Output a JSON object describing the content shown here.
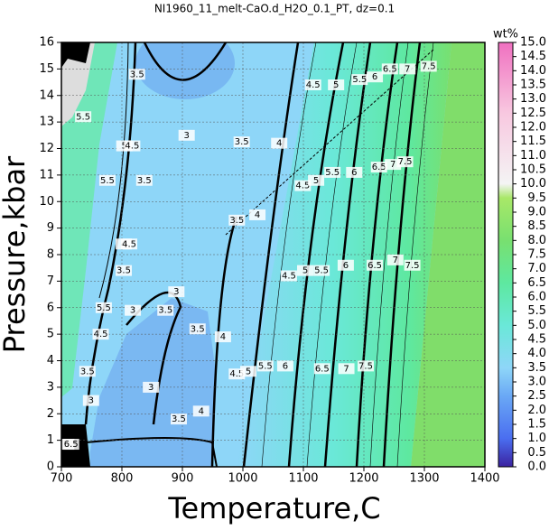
{
  "chart_data": {
    "type": "contour",
    "title": "NI1960_11_melt-CaO.d_H2O_0.1_PT, dz=0.1",
    "x_label": "Temperature,C",
    "y_label": "Pressure,kbar",
    "xlim": [
      700,
      1400
    ],
    "xticks": [
      700,
      800,
      900,
      1000,
      1100,
      1200,
      1300,
      1400
    ],
    "ylim": [
      0,
      16
    ],
    "yticks": [
      0,
      1,
      2,
      3,
      4,
      5,
      6,
      7,
      8,
      9,
      10,
      11,
      12,
      13,
      14,
      15,
      16
    ],
    "grid": true,
    "colorbar": {
      "label": "wt%",
      "lim": [
        0,
        15
      ],
      "ticks": [
        {
          "value": 0,
          "label": "0.0"
        },
        {
          "value": 0.5,
          "label": "0.5"
        },
        {
          "value": 1,
          "label": "1.0"
        },
        {
          "value": 1.5,
          "label": "1.5"
        },
        {
          "value": 2,
          "label": "2.0"
        },
        {
          "value": 2.5,
          "label": "2.5"
        },
        {
          "value": 3,
          "label": "3.0"
        },
        {
          "value": 3.5,
          "label": "3.5"
        },
        {
          "value": 4,
          "label": "4.0"
        },
        {
          "value": 4.5,
          "label": "4.5"
        },
        {
          "value": 5,
          "label": "5.0"
        },
        {
          "value": 5.5,
          "label": "5.5"
        },
        {
          "value": 6,
          "label": "6.0"
        },
        {
          "value": 6.5,
          "label": "6.5"
        },
        {
          "value": 7,
          "label": "7.0"
        },
        {
          "value": 7.5,
          "label": "7.5"
        },
        {
          "value": 8,
          "label": "8.0"
        },
        {
          "value": 8.5,
          "label": "8.5"
        },
        {
          "value": 9,
          "label": "9.0"
        },
        {
          "value": 9.5,
          "label": "9.5"
        },
        {
          "value": 10,
          "label": "10.0"
        },
        {
          "value": 10.5,
          "label": "10.5"
        },
        {
          "value": 11,
          "label": "11.0"
        },
        {
          "value": 11.5,
          "label": "11.5"
        },
        {
          "value": 12,
          "label": "12.0"
        },
        {
          "value": 12.5,
          "label": "12.5"
        },
        {
          "value": 13,
          "label": "13.0"
        },
        {
          "value": 13.5,
          "label": "13.5"
        },
        {
          "value": 14,
          "label": "14.0"
        },
        {
          "value": 14.5,
          "label": "14.5"
        },
        {
          "value": 15,
          "label": "15.0"
        }
      ],
      "colormap": [
        {
          "value": 0,
          "color": "#3b22a0"
        },
        {
          "value": 1,
          "color": "#4a6ef0"
        },
        {
          "value": 2.5,
          "color": "#6aa8f5"
        },
        {
          "value": 3.5,
          "color": "#8ed6f8"
        },
        {
          "value": 5,
          "color": "#6ae8d8"
        },
        {
          "value": 6.5,
          "color": "#5ee8a0"
        },
        {
          "value": 8,
          "color": "#78e070"
        },
        {
          "value": 9.5,
          "color": "#a8e868"
        },
        {
          "value": 10,
          "color": "#f4f4f4"
        },
        {
          "value": 12.5,
          "color": "#f8c8e0"
        },
        {
          "value": 15,
          "color": "#f070c0"
        }
      ]
    },
    "contour_labels": [
      {
        "x": 825,
        "y": 14.8,
        "value": 3.5
      },
      {
        "x": 907,
        "y": 12.5,
        "value": 3
      },
      {
        "x": 998,
        "y": 12.25,
        "value": 3.5
      },
      {
        "x": 1060,
        "y": 12.2,
        "value": 4
      },
      {
        "x": 1116,
        "y": 14.4,
        "value": 4.5
      },
      {
        "x": 1154,
        "y": 14.4,
        "value": 5
      },
      {
        "x": 1193,
        "y": 14.6,
        "value": 5.5
      },
      {
        "x": 1218,
        "y": 14.7,
        "value": 6
      },
      {
        "x": 1243,
        "y": 15.0,
        "value": 6.5
      },
      {
        "x": 1272,
        "y": 15.0,
        "value": 7
      },
      {
        "x": 1307,
        "y": 15.1,
        "value": 7.5
      },
      {
        "x": 736,
        "y": 13.2,
        "value": 5.5
      },
      {
        "x": 776,
        "y": 10.8,
        "value": 5.5
      },
      {
        "x": 804,
        "y": 12.1,
        "value": 5
      },
      {
        "x": 817,
        "y": 12.1,
        "value": 4.5
      },
      {
        "x": 837,
        "y": 10.8,
        "value": 3.5
      },
      {
        "x": 1099,
        "y": 10.6,
        "value": 4.5
      },
      {
        "x": 1121,
        "y": 10.8,
        "value": 5
      },
      {
        "x": 1148,
        "y": 11.1,
        "value": 5.5
      },
      {
        "x": 1184,
        "y": 11.1,
        "value": 6
      },
      {
        "x": 1225,
        "y": 11.3,
        "value": 6.5
      },
      {
        "x": 1248,
        "y": 11.4,
        "value": 7
      },
      {
        "x": 1268,
        "y": 11.5,
        "value": 7.5
      },
      {
        "x": 990,
        "y": 9.3,
        "value": 3.5
      },
      {
        "x": 1024,
        "y": 9.5,
        "value": 4
      },
      {
        "x": 803,
        "y": 8.4,
        "value": 4
      },
      {
        "x": 812,
        "y": 8.4,
        "value": 4.5
      },
      {
        "x": 803,
        "y": 7.4,
        "value": 3.5
      },
      {
        "x": 770,
        "y": 6.0,
        "value": 5.5
      },
      {
        "x": 818,
        "y": 5.9,
        "value": 3
      },
      {
        "x": 890,
        "y": 6.6,
        "value": 3
      },
      {
        "x": 872,
        "y": 5.9,
        "value": 3.5
      },
      {
        "x": 1076,
        "y": 7.2,
        "value": 4.5
      },
      {
        "x": 1103,
        "y": 7.4,
        "value": 5
      },
      {
        "x": 1130,
        "y": 7.4,
        "value": 5.5
      },
      {
        "x": 1170,
        "y": 7.6,
        "value": 6
      },
      {
        "x": 1218,
        "y": 7.6,
        "value": 6.5
      },
      {
        "x": 1252,
        "y": 7.8,
        "value": 7
      },
      {
        "x": 1280,
        "y": 7.6,
        "value": 7.5
      },
      {
        "x": 925,
        "y": 5.2,
        "value": 3.5
      },
      {
        "x": 967,
        "y": 4.9,
        "value": 4
      },
      {
        "x": 848,
        "y": 3.0,
        "value": 3
      },
      {
        "x": 990,
        "y": 3.5,
        "value": 4.5
      },
      {
        "x": 1009,
        "y": 3.6,
        "value": 5
      },
      {
        "x": 1037,
        "y": 3.8,
        "value": 5.5
      },
      {
        "x": 1070,
        "y": 3.8,
        "value": 6
      },
      {
        "x": 1131,
        "y": 3.7,
        "value": 6.5
      },
      {
        "x": 1171,
        "y": 3.7,
        "value": 7
      },
      {
        "x": 1203,
        "y": 3.8,
        "value": 7.5
      },
      {
        "x": 894,
        "y": 1.8,
        "value": 3.5
      },
      {
        "x": 931,
        "y": 2.1,
        "value": 4
      },
      {
        "x": 743,
        "y": 3.6,
        "value": 3.5
      },
      {
        "x": 749,
        "y": 2.5,
        "value": 3
      },
      {
        "x": 765,
        "y": 5.0,
        "value": 4.5
      },
      {
        "x": 708,
        "y": 0.85,
        "value": 5
      },
      {
        "x": 716,
        "y": 0.85,
        "value": 6.5
      }
    ]
  }
}
